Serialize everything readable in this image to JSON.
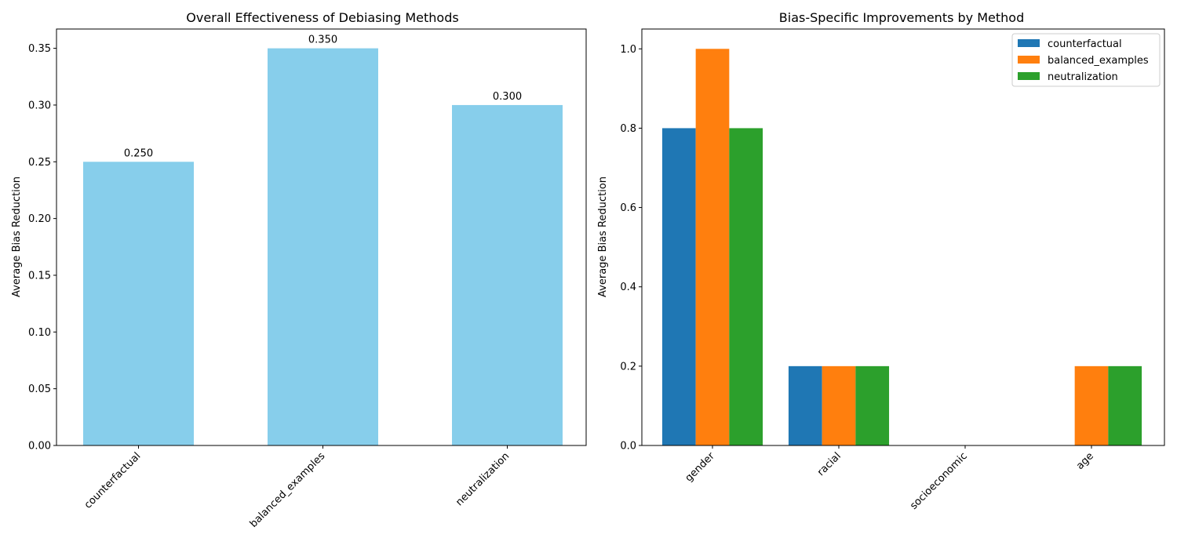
{
  "chart_data": [
    {
      "type": "bar",
      "title": "Overall Effectiveness of Debiasing Methods",
      "xlabel": "",
      "ylabel": "Average Bias Reduction",
      "categories": [
        "counterfactual",
        "balanced_examples",
        "neutralization"
      ],
      "values": [
        0.25,
        0.35,
        0.3
      ],
      "data_labels": [
        "0.250",
        "0.350",
        "0.300"
      ],
      "ylim": [
        0,
        0.367
      ],
      "yticks": [
        0.0,
        0.05,
        0.1,
        0.15,
        0.2,
        0.25,
        0.3,
        0.35
      ],
      "ytick_labels": [
        "0.00",
        "0.05",
        "0.10",
        "0.15",
        "0.20",
        "0.25",
        "0.30",
        "0.35"
      ],
      "bar_color": "#87CEEB",
      "grid": false
    },
    {
      "type": "bar",
      "title": "Bias-Specific Improvements by Method",
      "xlabel": "",
      "ylabel": "Average Bias Reduction",
      "categories": [
        "gender",
        "racial",
        "socioeconomic",
        "age"
      ],
      "series": [
        {
          "name": "counterfactual",
          "values": [
            0.8,
            0.2,
            0.0,
            0.0
          ],
          "color": "#1f77b4"
        },
        {
          "name": "balanced_examples",
          "values": [
            1.0,
            0.2,
            0.0,
            0.2
          ],
          "color": "#ff7f0e"
        },
        {
          "name": "neutralization",
          "values": [
            0.8,
            0.2,
            0.0,
            0.2
          ],
          "color": "#2ca02c"
        }
      ],
      "ylim": [
        0,
        1.05
      ],
      "yticks": [
        0.0,
        0.2,
        0.4,
        0.6,
        0.8,
        1.0
      ],
      "ytick_labels": [
        "0.0",
        "0.2",
        "0.4",
        "0.6",
        "0.8",
        "1.0"
      ],
      "legend_position": "top-right",
      "grid": false
    }
  ]
}
